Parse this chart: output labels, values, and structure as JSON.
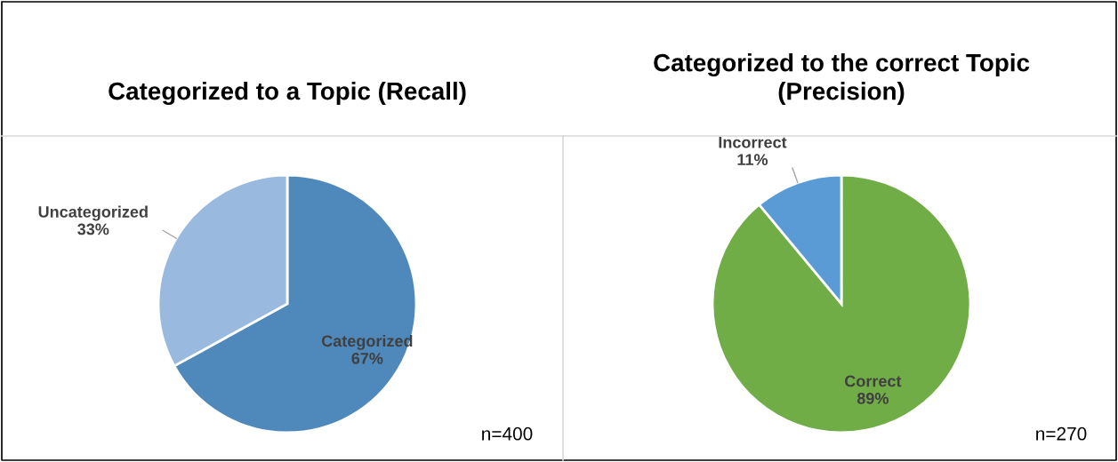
{
  "chart_data": [
    {
      "type": "pie",
      "title": "Categorized to a Topic (Recall)",
      "categories": [
        "Categorized",
        "Uncategorized"
      ],
      "values": [
        67,
        33
      ],
      "colors": [
        "#4f88bb",
        "#9ab9df"
      ],
      "value_labels": [
        "67%",
        "33%"
      ],
      "annotations": [
        "n=400"
      ]
    },
    {
      "type": "pie",
      "title": "Categorized to the correct Topic\n(Precision)",
      "categories": [
        "Correct",
        "Incorrect"
      ],
      "values": [
        89,
        11
      ],
      "colors": [
        "#70ad47",
        "#5b9bd5"
      ],
      "value_labels": [
        "89%",
        "11%"
      ],
      "annotations": [
        "n=270"
      ]
    }
  ]
}
